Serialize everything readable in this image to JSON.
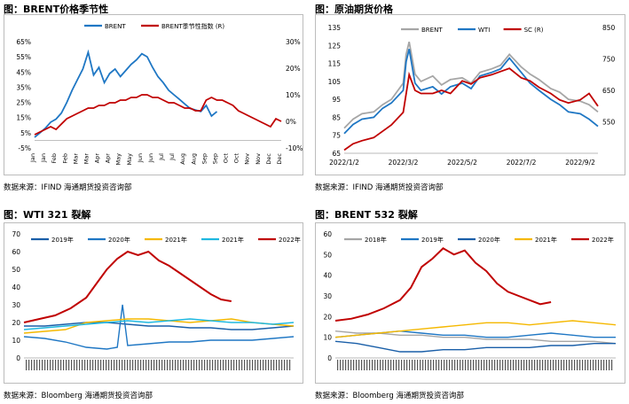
{
  "colors": {
    "blue": "#1f77c4",
    "red": "#c00000",
    "gray": "#a6a6a6",
    "yellow": "#f5b800",
    "cyan": "#1fb8e0",
    "navy": "#1a5fa8"
  },
  "panels": [
    {
      "title": "图：BRENT价格季节性",
      "source": "数据来源：IFIND   海通期货投资咨询部"
    },
    {
      "title": "图：原油期货价格",
      "source": "数据来源：IFIND   海通期货投资咨询部"
    },
    {
      "title": "图：WTI 321 裂解",
      "source": "数据来源：Bloomberg   海通期货投资咨询部"
    },
    {
      "title": "图：BRENT 532 裂解",
      "source": "数据来源：Bloomberg   海通期货投资咨询部"
    }
  ],
  "chart_data": [
    {
      "type": "line",
      "title": "",
      "categories": [
        "Jan",
        "Jan",
        "Feb",
        "Feb",
        "Mar",
        "Mar",
        "Apr",
        "Apr",
        "May",
        "May",
        "Jun",
        "Jun",
        "Jul",
        "Jul",
        "Aug",
        "Aug",
        "Sep",
        "Sep",
        "Oct",
        "Oct",
        "Nov",
        "Nov",
        "Dec",
        "Dec"
      ],
      "y_left": {
        "ticks": [
          "65%",
          "55%",
          "45%",
          "35%",
          "25%",
          "15%",
          "5%",
          "-5%"
        ],
        "range": [
          -5,
          65
        ]
      },
      "y_right": {
        "ticks": [
          "30%",
          "20%",
          "10%",
          "0%",
          "-10%"
        ],
        "range": [
          -10,
          30
        ]
      },
      "series": [
        {
          "name": "BRENT",
          "axis": "left",
          "color": "blue",
          "x": [
            0,
            0.5,
            1,
            1.5,
            2,
            2.5,
            3,
            3.5,
            4,
            4.5,
            5,
            5.5,
            6,
            6.5,
            7,
            7.5,
            8,
            8.5,
            9,
            9.5,
            10,
            10.5,
            11,
            11.5,
            12,
            12.5,
            13,
            13.5,
            14,
            14.5,
            15,
            15.5,
            16,
            16.5,
            17
          ],
          "y": [
            2,
            5,
            8,
            12,
            14,
            18,
            25,
            33,
            40,
            47,
            58,
            43,
            48,
            38,
            44,
            47,
            42,
            46,
            50,
            53,
            57,
            55,
            48,
            42,
            38,
            33,
            30,
            27,
            24,
            21,
            20,
            19,
            23,
            16,
            19
          ]
        },
        {
          "name": "BRENT季节性指数 (R)",
          "axis": "right",
          "color": "red",
          "x": [
            0,
            0.5,
            1,
            1.5,
            2,
            2.5,
            3,
            3.5,
            4,
            4.5,
            5,
            5.5,
            6,
            6.5,
            7,
            7.5,
            8,
            8.5,
            9,
            9.5,
            10,
            10.5,
            11,
            11.5,
            12,
            12.5,
            13,
            13.5,
            14,
            14.5,
            15,
            15.5,
            16,
            16.5,
            17,
            17.5,
            18,
            18.5,
            19,
            19.5,
            20,
            20.5,
            21,
            21.5,
            22,
            22.5,
            23
          ],
          "y": [
            -5,
            -4,
            -3,
            -2,
            -3,
            -1,
            1,
            2,
            3,
            4,
            5,
            5,
            6,
            6,
            7,
            7,
            8,
            8,
            9,
            9,
            10,
            10,
            9,
            9,
            8,
            7,
            7,
            6,
            5,
            5,
            4,
            4,
            8,
            9,
            8,
            8,
            7,
            6,
            4,
            3,
            2,
            1,
            0,
            -1,
            -2,
            1,
            0
          ]
        }
      ]
    },
    {
      "type": "line",
      "title": "",
      "x_ticks": [
        "2022/1/2",
        "2022/3/2",
        "2022/5/2",
        "2022/7/2",
        "2022/9/2"
      ],
      "x_range": [
        0,
        8.6
      ],
      "y_left": {
        "ticks": [
          "135",
          "125",
          "115",
          "105",
          "95",
          "85",
          "75",
          "65"
        ],
        "range": [
          65,
          135
        ]
      },
      "y_right": {
        "ticks": [
          "850",
          "750",
          "650",
          "550"
        ],
        "range": [
          450,
          850
        ]
      },
      "series": [
        {
          "name": "BRENT",
          "axis": "left",
          "color": "gray",
          "x": [
            0,
            0.3,
            0.6,
            1,
            1.3,
            1.6,
            2,
            2.1,
            2.2,
            2.4,
            2.6,
            3,
            3.3,
            3.6,
            4,
            4.3,
            4.6,
            5,
            5.3,
            5.6,
            6,
            6.3,
            6.6,
            7,
            7.3,
            7.6,
            8,
            8.3,
            8.6
          ],
          "y": [
            79,
            84,
            87,
            88,
            92,
            95,
            104,
            120,
            127,
            109,
            105,
            108,
            103,
            106,
            107,
            104,
            110,
            112,
            114,
            120,
            113,
            109,
            106,
            101,
            99,
            95,
            94,
            92,
            88
          ]
        },
        {
          "name": "WTI",
          "axis": "left",
          "color": "blue",
          "x": [
            0,
            0.3,
            0.6,
            1,
            1.3,
            1.6,
            2,
            2.1,
            2.2,
            2.4,
            2.6,
            3,
            3.3,
            3.6,
            4,
            4.3,
            4.6,
            5,
            5.3,
            5.6,
            6,
            6.3,
            6.6,
            7,
            7.3,
            7.6,
            8,
            8.3,
            8.6
          ],
          "y": [
            76,
            81,
            84,
            85,
            90,
            93,
            100,
            116,
            123,
            104,
            100,
            102,
            98,
            102,
            104,
            101,
            108,
            110,
            112,
            118,
            110,
            104,
            100,
            95,
            92,
            88,
            87,
            84,
            80
          ]
        },
        {
          "name": "SC (R)",
          "axis": "right",
          "color": "red",
          "x": [
            0,
            0.3,
            0.6,
            1,
            1.3,
            1.6,
            2,
            2.2,
            2.4,
            2.6,
            3,
            3.3,
            3.6,
            4,
            4.3,
            4.6,
            5,
            5.3,
            5.6,
            6,
            6.3,
            6.6,
            7,
            7.3,
            7.6,
            8,
            8.3,
            8.6
          ],
          "y": [
            460,
            480,
            490,
            500,
            520,
            540,
            580,
            700,
            650,
            640,
            640,
            650,
            640,
            680,
            670,
            690,
            700,
            710,
            720,
            690,
            680,
            660,
            640,
            620,
            610,
            620,
            640,
            600
          ]
        }
      ]
    },
    {
      "type": "line",
      "title": "",
      "x_range": [
        0,
        52
      ],
      "y": {
        "ticks": [
          "70",
          "60",
          "50",
          "40",
          "30",
          "20",
          "10",
          "0"
        ],
        "range": [
          0,
          70
        ]
      },
      "series": [
        {
          "name": "2019年",
          "color": "navy",
          "x": [
            0,
            4,
            8,
            12,
            16,
            20,
            24,
            28,
            32,
            36,
            40,
            44,
            48,
            52
          ],
          "y": [
            18,
            18,
            19,
            20,
            20,
            19,
            18,
            18,
            17,
            17,
            16,
            16,
            17,
            18
          ]
        },
        {
          "name": "2020年",
          "color": "blue",
          "x": [
            0,
            4,
            8,
            12,
            16,
            18,
            19,
            20,
            24,
            28,
            32,
            36,
            40,
            44,
            48,
            52
          ],
          "y": [
            12,
            11,
            9,
            6,
            5,
            6,
            30,
            7,
            8,
            9,
            9,
            10,
            10,
            10,
            11,
            12
          ]
        },
        {
          "name": "2021年",
          "color": "yellow",
          "x": [
            0,
            4,
            8,
            12,
            16,
            20,
            24,
            28,
            32,
            36,
            40,
            44,
            48,
            52
          ],
          "y": [
            14,
            15,
            16,
            20,
            21,
            22,
            22,
            21,
            20,
            21,
            22,
            20,
            19,
            18
          ]
        },
        {
          "name": "2021年",
          "color": "cyan",
          "x": [
            0,
            4,
            8,
            12,
            16,
            20,
            24,
            28,
            32,
            36,
            40,
            44,
            48,
            52
          ],
          "y": [
            16,
            17,
            18,
            19,
            20,
            21,
            20,
            21,
            22,
            21,
            20,
            20,
            19,
            20
          ]
        },
        {
          "name": "2022年",
          "color": "red",
          "x": [
            0,
            3,
            6,
            9,
            12,
            14,
            16,
            18,
            20,
            22,
            24,
            26,
            28,
            30,
            32,
            34,
            36,
            38,
            40
          ],
          "y": [
            20,
            22,
            24,
            28,
            34,
            42,
            50,
            56,
            60,
            58,
            60,
            55,
            52,
            48,
            44,
            40,
            36,
            33,
            32
          ]
        }
      ]
    },
    {
      "type": "line",
      "title": "",
      "x_range": [
        0,
        52
      ],
      "y": {
        "ticks": [
          "60",
          "50",
          "40",
          "30",
          "20",
          "10",
          "0"
        ],
        "range": [
          0,
          60
        ]
      },
      "series": [
        {
          "name": "2018年",
          "color": "gray",
          "x": [
            0,
            4,
            8,
            12,
            16,
            20,
            24,
            28,
            32,
            36,
            40,
            44,
            48,
            52
          ],
          "y": [
            13,
            12,
            12,
            11,
            11,
            10,
            10,
            9,
            9,
            9,
            8,
            8,
            8,
            7
          ]
        },
        {
          "name": "2019年",
          "color": "blue",
          "x": [
            0,
            4,
            8,
            12,
            16,
            20,
            24,
            28,
            32,
            36,
            40,
            44,
            48,
            52
          ],
          "y": [
            10,
            11,
            12,
            13,
            12,
            11,
            11,
            10,
            10,
            11,
            12,
            11,
            10,
            10
          ]
        },
        {
          "name": "2020年",
          "color": "navy",
          "x": [
            0,
            4,
            8,
            12,
            16,
            20,
            24,
            28,
            32,
            36,
            40,
            44,
            48,
            52
          ],
          "y": [
            8,
            7,
            5,
            3,
            3,
            4,
            4,
            5,
            5,
            5,
            6,
            6,
            7,
            7
          ]
        },
        {
          "name": "2021年",
          "color": "yellow",
          "x": [
            0,
            4,
            8,
            12,
            16,
            20,
            24,
            28,
            32,
            36,
            40,
            44,
            48,
            52
          ],
          "y": [
            10,
            11,
            12,
            13,
            14,
            15,
            16,
            17,
            17,
            16,
            17,
            18,
            17,
            16
          ]
        },
        {
          "name": "2022年",
          "color": "red",
          "x": [
            0,
            3,
            6,
            9,
            12,
            14,
            16,
            18,
            20,
            22,
            24,
            26,
            28,
            30,
            32,
            34,
            36,
            38,
            40
          ],
          "y": [
            18,
            19,
            21,
            24,
            28,
            34,
            44,
            48,
            53,
            50,
            52,
            46,
            42,
            36,
            32,
            30,
            28,
            26,
            27
          ]
        }
      ]
    }
  ]
}
